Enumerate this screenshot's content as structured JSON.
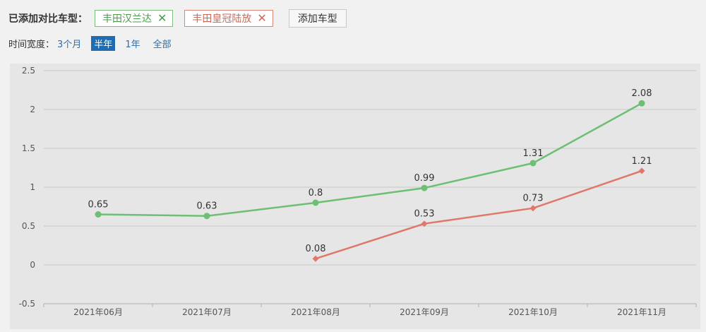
{
  "compare": {
    "label": "已添加对比车型：",
    "models": [
      {
        "name": "丰田汉兰达",
        "color": "#6cbf73"
      },
      {
        "name": "丰田皇冠陆放",
        "color": "#e0786a"
      }
    ],
    "remove_icon": "close-icon",
    "add_label": "添加车型"
  },
  "range": {
    "label": "时间宽度：",
    "options": [
      "3个月",
      "半年",
      "1年",
      "全部"
    ],
    "selected": "半年"
  },
  "chart_data": {
    "type": "line",
    "categories": [
      "2021年06月",
      "2021年07月",
      "2021年08月",
      "2021年09月",
      "2021年10月",
      "2021年11月"
    ],
    "y_ticks": [
      "2.5",
      "2",
      "1.5",
      "1",
      "0.5",
      "0",
      "-0.5"
    ],
    "ylim": [
      -0.5,
      2.5
    ],
    "grid": true,
    "series": [
      {
        "name": "丰田汉兰达",
        "color": "#6cbf73",
        "marker": "circle",
        "values": [
          0.65,
          0.63,
          0.8,
          0.99,
          1.31,
          2.08
        ],
        "labels": [
          "0.65",
          "0.63",
          "0.8",
          "0.99",
          "1.31",
          "2.08"
        ]
      },
      {
        "name": "丰田皇冠陆放",
        "color": "#e0786a",
        "marker": "diamond",
        "values": [
          null,
          null,
          0.08,
          0.53,
          0.73,
          1.21
        ],
        "labels": [
          "",
          "",
          "0.08",
          "0.53",
          "0.73",
          "1.21"
        ]
      }
    ]
  }
}
